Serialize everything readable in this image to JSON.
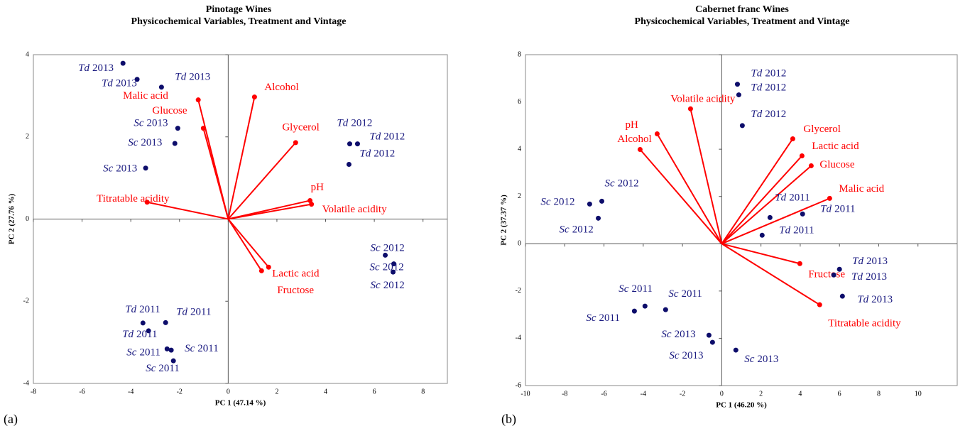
{
  "chart_data": [
    {
      "type": "biplot",
      "title": [
        "Pinotage Wines",
        "Physicochemical Variables, Treatment and Vintage"
      ],
      "panel_label": "(a)",
      "xlabel": "PC 1 (47.14 %)",
      "ylabel": "PC 2 (27.76 %)",
      "xlim": [
        -8,
        9
      ],
      "xticks": [
        -8,
        -6,
        -4,
        -2,
        0,
        2,
        4,
        6,
        8
      ],
      "ylim": [
        -4,
        4
      ],
      "yticks": [
        -4,
        -2,
        0,
        2,
        4
      ],
      "series": [
        {
          "color": "#0d0d6b",
          "x": [
            -4.32,
            -3.74,
            -2.74,
            -2.07,
            -2.19,
            -3.39,
            4.99,
            5.31,
            4.96,
            6.45,
            6.8,
            6.77,
            -3.5,
            -2.57,
            -3.27,
            -2.51,
            -2.34,
            -2.25
          ],
          "values": [
            3.79,
            3.4,
            3.21,
            2.21,
            1.84,
            1.24,
            1.83,
            1.83,
            1.33,
            -0.88,
            -1.09,
            -1.29,
            -2.53,
            -2.52,
            -2.72,
            -3.16,
            -3.19,
            -3.45
          ],
          "labels": [
            [
              "Td",
              "2013"
            ],
            [
              "Td",
              "2013"
            ],
            [
              "Td",
              "2013"
            ],
            [
              "Sc",
              "2013"
            ],
            [
              "Sc",
              "2013"
            ],
            [
              "Sc",
              "2013"
            ],
            [
              "Td",
              "2012"
            ],
            [
              "Td",
              "2012"
            ],
            [
              "Td",
              "2012"
            ],
            [
              "Sc",
              "2012"
            ],
            [
              "Sc",
              "2012"
            ],
            [
              "Sc",
              "2012"
            ],
            [
              "Td",
              "2011"
            ],
            [
              "Td",
              "2011"
            ],
            [
              "Td",
              "2011"
            ],
            [
              "Sc",
              "2011"
            ],
            [
              "Sc",
              "2011"
            ],
            [
              "Sc",
              "2011"
            ]
          ]
        }
      ],
      "loadings": {
        "color": "#ff0000",
        "x": [
          1.08,
          -1.23,
          -1.02,
          2.77,
          3.36,
          3.42,
          -3.33,
          1.66,
          1.37
        ],
        "values": [
          2.97,
          2.9,
          2.21,
          1.86,
          0.45,
          0.36,
          0.41,
          -1.17,
          -1.26
        ],
        "labels": [
          "Alcohol",
          "Malic acid",
          "Glucose",
          "Glycerol",
          "pH",
          "Volatile acidity",
          "Titratable acidity",
          "Lactic acid",
          "Fructose"
        ]
      }
    },
    {
      "type": "biplot",
      "title": [
        "Cabernet franc Wines",
        "Physicochemical Variables, Treatment and Vintage"
      ],
      "panel_label": "(b)",
      "xlabel": "PC 1 (46.20 %)",
      "ylabel": "PC 2 (37.37 %)",
      "xlim": [
        -10,
        12
      ],
      "xticks": [
        -10,
        -8,
        -6,
        -4,
        -2,
        0,
        2,
        4,
        6,
        8,
        10
      ],
      "ylim": [
        -6,
        8
      ],
      "yticks": [
        -6,
        -4,
        -2,
        0,
        2,
        4,
        6,
        8
      ],
      "series": [
        {
          "color": "#0d0d6b",
          "x": [
            0.8,
            0.87,
            1.05,
            -6.73,
            -6.11,
            -6.29,
            2.46,
            4.12,
            2.06,
            6.0,
            5.71,
            6.15,
            -4.45,
            -3.91,
            -2.86,
            -0.65,
            -0.47,
            0.72
          ],
          "values": [
            6.75,
            6.3,
            5.0,
            1.68,
            1.8,
            1.08,
            1.11,
            1.26,
            0.36,
            -1.08,
            -1.32,
            -2.22,
            -2.85,
            -2.64,
            -2.79,
            -3.87,
            -4.17,
            -4.5
          ],
          "labels": [
            [
              "Td",
              "2012"
            ],
            [
              "Td",
              "2012"
            ],
            [
              "Td",
              "2012"
            ],
            [
              "Sc",
              "2012"
            ],
            [
              "Sc",
              "2012"
            ],
            [
              "Sc",
              "2012"
            ],
            [
              "Td",
              "2011"
            ],
            [
              "Td",
              "2011"
            ],
            [
              "Td",
              "2011"
            ],
            [
              "Td",
              "2013"
            ],
            [
              "Td",
              "2013"
            ],
            [
              "Td",
              "2013"
            ],
            [
              "Sc",
              "2011"
            ],
            [
              "Sc",
              "2011"
            ],
            [
              "Sc",
              "2011"
            ],
            [
              "Sc",
              "2013"
            ],
            [
              "Sc",
              "2013"
            ],
            [
              "Sc",
              "2013"
            ]
          ]
        }
      ],
      "loadings": {
        "color": "#ff0000",
        "x": [
          -1.59,
          -3.29,
          -4.16,
          3.62,
          4.09,
          4.56,
          5.5,
          3.98,
          4.99
        ],
        "values": [
          5.71,
          4.65,
          3.99,
          4.44,
          3.72,
          3.3,
          1.92,
          -0.84,
          -2.58
        ],
        "labels": [
          "Volatile acidity",
          "pH",
          "Alcohol",
          "Glycerol",
          "Lactic acid",
          "Glucose",
          "Malic acid",
          "Fructose",
          "Titratable acidity"
        ]
      }
    }
  ]
}
